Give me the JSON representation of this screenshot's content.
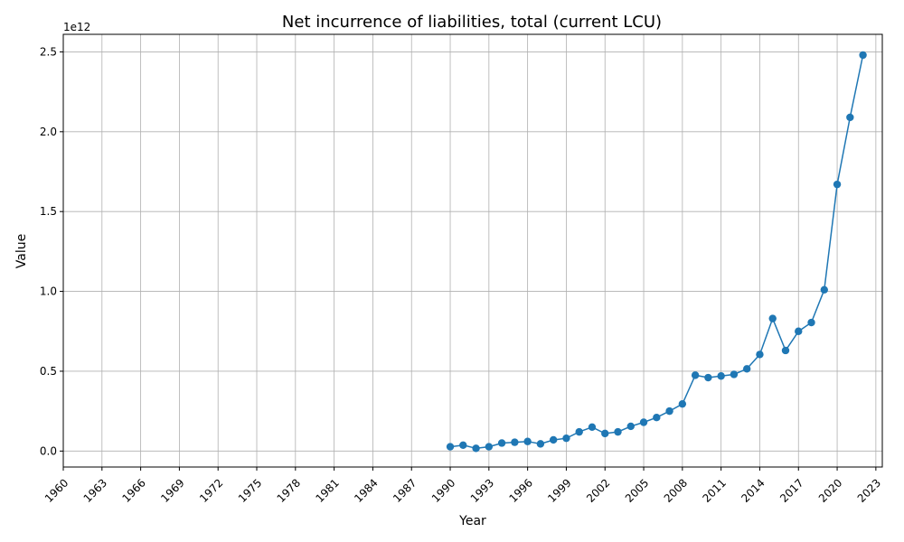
{
  "chart_data": {
    "type": "line",
    "title": "Net incurrence of liabilities, total (current LCU)",
    "xlabel": "Year",
    "ylabel": "Value",
    "y_offset_label": "1e12",
    "xlim": [
      1960,
      2023.5
    ],
    "ylim": [
      -0.1,
      2.61
    ],
    "y_scale_note": "values in units of 1e12",
    "x_ticks": [
      1960,
      1963,
      1966,
      1969,
      1972,
      1975,
      1978,
      1981,
      1984,
      1987,
      1990,
      1993,
      1996,
      1999,
      2002,
      2005,
      2008,
      2011,
      2014,
      2017,
      2020,
      2023
    ],
    "y_ticks": [
      {
        "value": 0.0,
        "label": "0.0"
      },
      {
        "value": 0.5,
        "label": "0.5"
      },
      {
        "value": 1.0,
        "label": "1.0"
      },
      {
        "value": 1.5,
        "label": "1.5"
      },
      {
        "value": 2.0,
        "label": "2.0"
      },
      {
        "value": 2.5,
        "label": "2.5"
      }
    ],
    "grid": true,
    "color": "#1f77b4",
    "series": [
      {
        "x": [
          1990,
          1991,
          1992,
          1993,
          1994,
          1995,
          1996,
          1997,
          1998,
          1999,
          2000,
          2001,
          2002,
          2003,
          2004,
          2005,
          2006,
          2007,
          2008,
          2009,
          2010,
          2011,
          2012,
          2013,
          2014,
          2015,
          2016,
          2017,
          2018,
          2019,
          2020,
          2021,
          2022
        ],
        "values": [
          0.027,
          0.037,
          0.017,
          0.027,
          0.05,
          0.055,
          0.06,
          0.045,
          0.07,
          0.08,
          0.12,
          0.15,
          0.11,
          0.12,
          0.155,
          0.18,
          0.21,
          0.25,
          0.295,
          0.475,
          0.46,
          0.47,
          0.48,
          0.515,
          0.605,
          0.83,
          0.63,
          0.75,
          0.805,
          1.01,
          1.67,
          2.09,
          2.48
        ]
      }
    ]
  }
}
